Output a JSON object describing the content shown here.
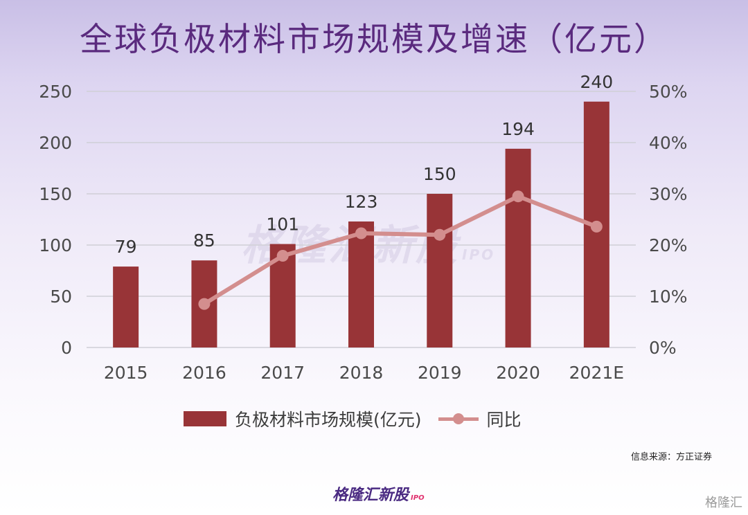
{
  "title": "全球负极材料市场规模及增速（亿元）",
  "source": "信息来源：方正证券",
  "watermark": "格隆汇新股",
  "watermark_sub": "IPO",
  "brand": "格隆汇新股",
  "brand_sub": "IPO",
  "corner_logo": "格隆汇",
  "colors": {
    "bar": "#983437",
    "line": "#d38e8e",
    "title": "#5a2a7e"
  },
  "chart_data": {
    "type": "bar",
    "categories": [
      "2015",
      "2016",
      "2017",
      "2018",
      "2019",
      "2020",
      "2021E"
    ],
    "series": [
      {
        "name": "负极材料市场规模(亿元)",
        "type": "bar",
        "axis": "left",
        "values": [
          79,
          85,
          101,
          123,
          150,
          194,
          240
        ],
        "data_labels": [
          "79",
          "85",
          "101",
          "123",
          "150",
          "194",
          "240"
        ]
      },
      {
        "name": "同比",
        "type": "line",
        "axis": "right",
        "values": [
          null,
          8.5,
          17.9,
          22.3,
          22.0,
          29.5,
          23.6
        ]
      }
    ],
    "y_left": {
      "min": 0,
      "max": 250,
      "ticks": [
        "0",
        "50",
        "100",
        "150",
        "200",
        "250"
      ]
    },
    "y_right": {
      "min": 0,
      "max": 50,
      "ticks": [
        "0%",
        "10%",
        "20%",
        "30%",
        "40%",
        "50%"
      ]
    },
    "grid": true,
    "legend": "bottom"
  }
}
